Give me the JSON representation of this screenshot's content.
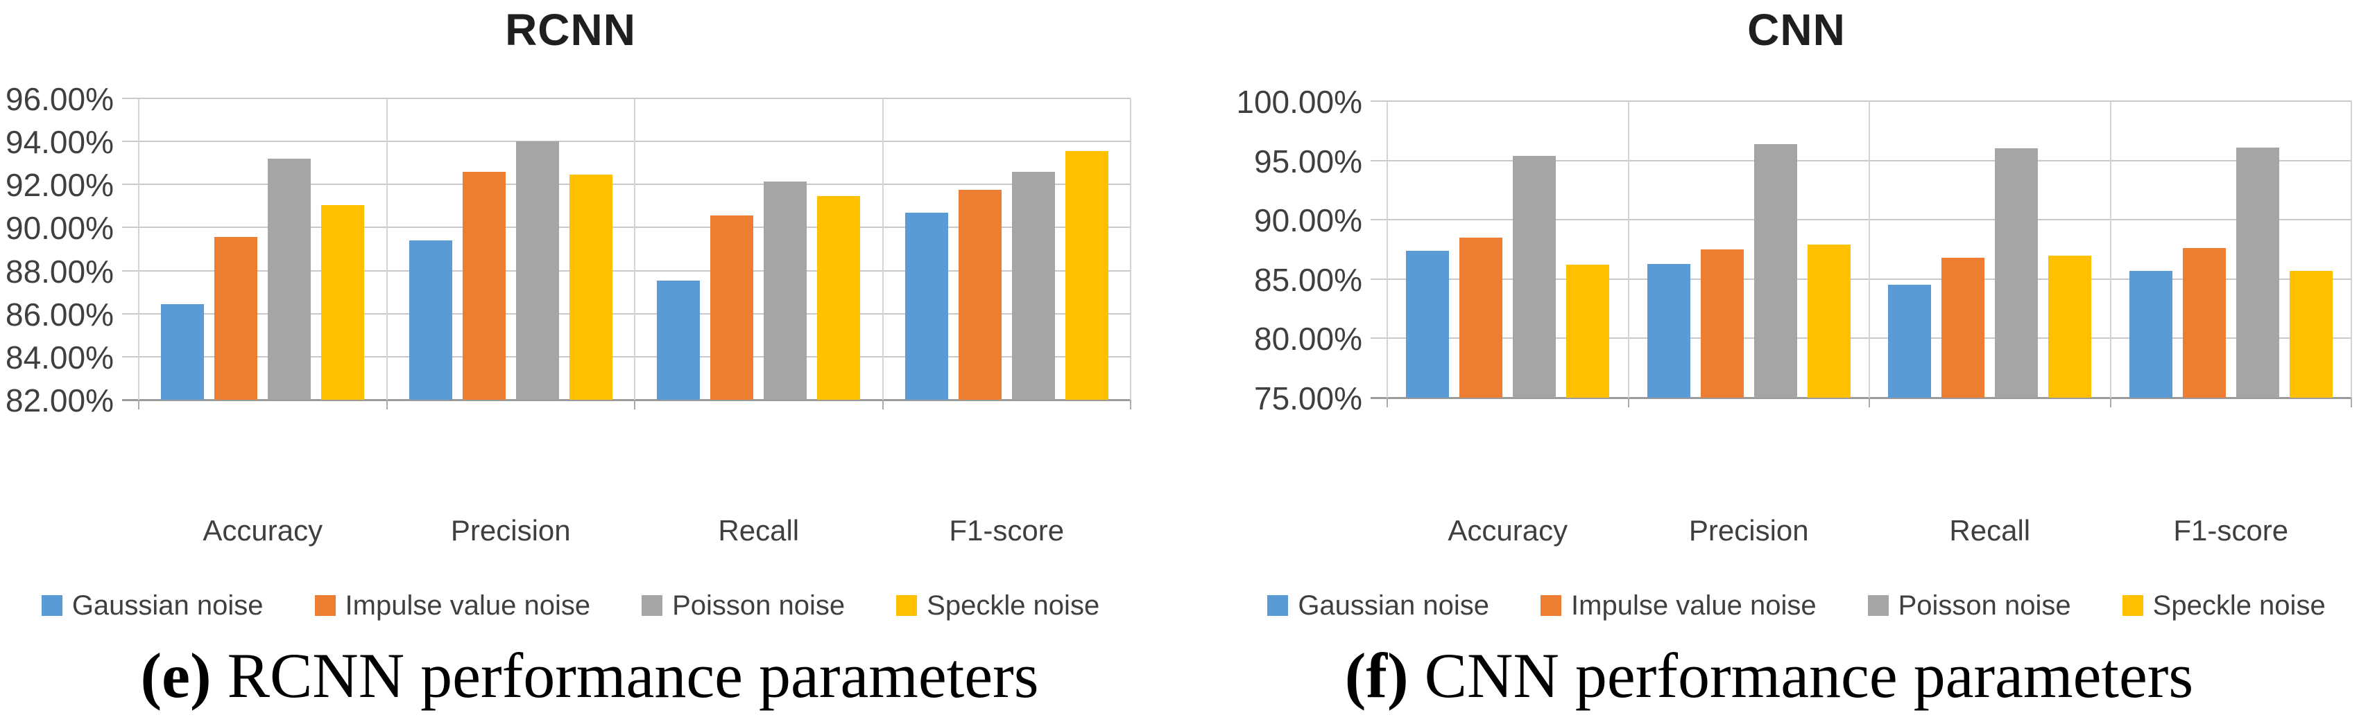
{
  "figure": {
    "panels": [
      {
        "title": "RCNN",
        "caption_label": "(e)",
        "caption_text": " RCNN performance parameters"
      },
      {
        "title": "CNN",
        "caption_label": "(f)",
        "caption_text": " CNN performance parameters"
      }
    ]
  },
  "colors": {
    "gaussian_blue": "#5B9BD5",
    "impulse_orange": "#ED7D31",
    "poisson_gray": "#A5A5A5",
    "speckle_yellow": "#FFC000"
  },
  "chart_data": [
    {
      "type": "bar",
      "title": "RCNN",
      "caption": "(e) RCNN performance parameters",
      "categories": [
        "Accuracy",
        "Precision",
        "Recall",
        "F1-score"
      ],
      "series": [
        {
          "name": "Gaussian noise",
          "color": "#5B9BD5",
          "values": [
            86.45,
            89.4,
            87.55,
            90.7
          ]
        },
        {
          "name": "Impulse value noise",
          "color": "#ED7D31",
          "values": [
            89.55,
            92.6,
            90.55,
            91.75
          ]
        },
        {
          "name": "Poisson noise",
          "color": "#A5A5A5",
          "values": [
            93.2,
            94.0,
            92.15,
            92.6
          ]
        },
        {
          "name": "Speckle noise",
          "color": "#FFC000",
          "values": [
            91.05,
            92.45,
            91.45,
            93.55
          ]
        }
      ],
      "ylim": [
        82,
        96
      ],
      "ytick_step": 2,
      "ytick_labels": [
        "96.00%",
        "94.00%",
        "92.00%",
        "90.00%",
        "88.00%",
        "86.00%",
        "84.00%",
        "82.00%"
      ],
      "grid": true,
      "legend_position": "bottom"
    },
    {
      "type": "bar",
      "title": "CNN",
      "caption": "(f) CNN performance parameters",
      "categories": [
        "Accuracy",
        "Precision",
        "Recall",
        "F1-score"
      ],
      "series": [
        {
          "name": "Gaussian noise",
          "color": "#5B9BD5",
          "values": [
            87.4,
            86.3,
            84.5,
            85.7
          ]
        },
        {
          "name": "Impulse value noise",
          "color": "#ED7D31",
          "values": [
            88.5,
            87.5,
            86.8,
            87.6
          ]
        },
        {
          "name": "Poisson noise",
          "color": "#A5A5A5",
          "values": [
            95.4,
            96.4,
            96.0,
            96.1
          ]
        },
        {
          "name": "Speckle noise",
          "color": "#FFC000",
          "values": [
            86.2,
            87.9,
            87.0,
            85.7
          ]
        }
      ],
      "ylim": [
        75,
        100
      ],
      "ytick_step": 5,
      "ytick_labels": [
        "100.00%",
        "95.00%",
        "90.00%",
        "85.00%",
        "80.00%",
        "75.00%"
      ],
      "grid": true,
      "legend_position": "bottom"
    }
  ]
}
